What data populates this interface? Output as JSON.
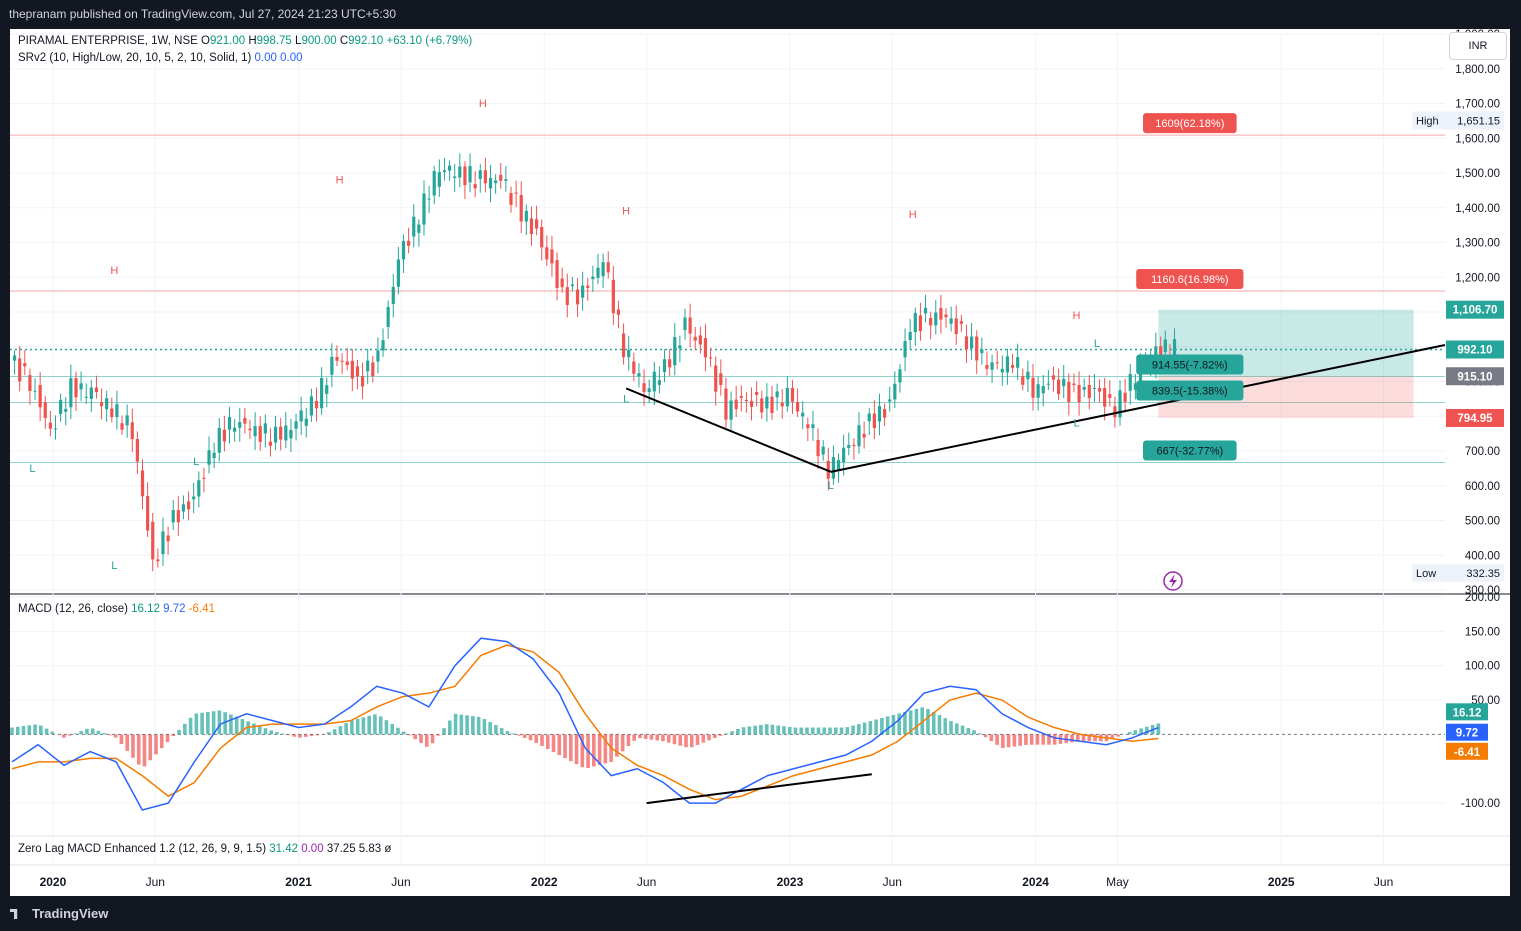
{
  "header": {
    "published": "thepranam published on TradingView.com, Jul 27, 2024 21:23 UTC+5:30"
  },
  "footer": {
    "brand": "TradingView"
  },
  "currency_button": "INR",
  "legend": {
    "symbol": "PIRAMAL ENTERPRISE, 1W, NSE",
    "open_label": "O",
    "open": "921.00",
    "high_label": "H",
    "high": "998.75",
    "low_label": "L",
    "low": "900.00",
    "close_label": "C",
    "close": "992.10",
    "change": "+63.10 (+6.79%)",
    "srv2_label": "SRv2 (10, High/Low, 20, 10, 5, 2, 10, Solid, 1)",
    "srv2_v1": "0.00",
    "srv2_v2": "0.00",
    "macd_label": "MACD (12, 26, close)",
    "macd_hist": "16.12",
    "macd_line": "9.72",
    "macd_signal": "-6.41",
    "zlmacd_label": "Zero Lag MACD Enhanced 1.2 (12, 26, 9, 9, 1.5)",
    "zl_v1": "31.42",
    "zl_v2": "0.00",
    "zl_v3": "37.25",
    "zl_v4": "5.83",
    "zl_v5": "ø"
  },
  "colors": {
    "up": "#26a69a",
    "down": "#ef5350",
    "macd": "#2962ff",
    "signal": "#f57c00",
    "bg": "#ffffff",
    "frame": "#131722"
  },
  "chart_data": [
    {
      "type": "candlestick",
      "timeframe": "weekly",
      "y_axis_ticks": [
        "1,900.00",
        "1,800.00",
        "1,700.00",
        "1,600.00",
        "1,500.00",
        "1,400.00",
        "1,300.00",
        "1,200.00",
        "1,100.00",
        "1,000.00",
        "900.00",
        "800.00",
        "700.00",
        "600.00",
        "500.00",
        "400.00",
        "300.00"
      ],
      "ylim": [
        300,
        1900
      ],
      "x_axis_labels": [
        "2020",
        "Jun",
        "2021",
        "Jun",
        "2022",
        "Jun",
        "2023",
        "Jun",
        "2024",
        "May",
        "2025",
        "Jun"
      ],
      "price_labels": {
        "high": {
          "label": "High",
          "value": "1,651.15"
        },
        "low": {
          "label": "Low",
          "value": "332.35"
        },
        "last": "992.10",
        "level_915": "915.10",
        "target": "1,106.70",
        "stop": "794.95"
      },
      "levels": [
        {
          "label": "1609(62.18%)",
          "value": 1609,
          "color": "#ef5350"
        },
        {
          "label": "1160.6(16.98%)",
          "value": 1160.6,
          "color": "#ef5350"
        },
        {
          "label": "914.55(-7.82%)",
          "value": 914.55,
          "color": "#26a69a"
        },
        {
          "label": "839.5(-15.38%)",
          "value": 839.5,
          "color": "#26a69a"
        },
        {
          "label": "667(-32.77%)",
          "value": 667,
          "color": "#26a69a"
        }
      ],
      "pivot_markers": [
        "H",
        "H",
        "H",
        "H",
        "H",
        "H",
        "L",
        "L",
        "L",
        "L",
        "L",
        "L",
        "L"
      ],
      "trend_lines": [
        {
          "from": {
            "x": "2022-05",
            "y": 880
          },
          "to": {
            "x": "2023-03",
            "y": 640
          }
        },
        {
          "from": {
            "x": "2023-03",
            "y": 640
          },
          "to": {
            "x": "2025-09",
            "y": 1005
          }
        }
      ],
      "series": [
        {
          "name": "PIRAMAL ENTERPRISE",
          "x": [
            "2019-11",
            "2019-12",
            "2020-01",
            "2020-02",
            "2020-03",
            "2020-04",
            "2020-05",
            "2020-06",
            "2020-07",
            "2020-08",
            "2020-09",
            "2020-10",
            "2020-11",
            "2020-12",
            "2021-01",
            "2021-02",
            "2021-03",
            "2021-04",
            "2021-05",
            "2021-06",
            "2021-07",
            "2021-08",
            "2021-09",
            "2021-10",
            "2021-11",
            "2021-12",
            "2022-01",
            "2022-02",
            "2022-03",
            "2022-04",
            "2022-05",
            "2022-06",
            "2022-07",
            "2022-08",
            "2022-09",
            "2022-10",
            "2022-11",
            "2022-12",
            "2023-01",
            "2023-02",
            "2023-03",
            "2023-04",
            "2023-05",
            "2023-06",
            "2023-07",
            "2023-08",
            "2023-09",
            "2023-10",
            "2023-11",
            "2023-12",
            "2024-01",
            "2024-02",
            "2024-03",
            "2024-04",
            "2024-05",
            "2024-06",
            "2024-07"
          ],
          "close": [
            960,
            900,
            760,
            880,
            870,
            820,
            760,
            380,
            500,
            560,
            720,
            790,
            760,
            740,
            780,
            850,
            980,
            900,
            960,
            1250,
            1380,
            1520,
            1500,
            1480,
            1480,
            1390,
            1300,
            1150,
            1150,
            1250,
            1000,
            880,
            940,
            1060,
            980,
            820,
            850,
            830,
            860,
            780,
            650,
            720,
            780,
            830,
            1060,
            1090,
            1080,
            1000,
            940,
            960,
            880,
            900,
            860,
            870,
            820,
            920,
            992
          ]
        }
      ]
    },
    {
      "type": "line",
      "title": "MACD (12, 26, close)",
      "y_axis_ticks": [
        "200.00",
        "150.00",
        "100.00",
        "50.00",
        "-100.00"
      ],
      "ylim": [
        -145,
        200
      ],
      "last_values": {
        "histogram": "16.12",
        "macd": "9.72",
        "signal": "-6.41"
      },
      "series": [
        {
          "name": "MACD",
          "color": "#2962ff",
          "values": [
            -40,
            -15,
            -45,
            -25,
            -40,
            -110,
            -100,
            -40,
            15,
            30,
            20,
            10,
            15,
            40,
            70,
            60,
            40,
            100,
            140,
            135,
            110,
            60,
            -20,
            -60,
            -50,
            -70,
            -100,
            -100,
            -80,
            -60,
            -50,
            -40,
            -30,
            -10,
            20,
            60,
            70,
            65,
            30,
            10,
            -5,
            -10,
            -15,
            -5,
            10
          ]
        },
        {
          "name": "Signal",
          "color": "#f57c00",
          "values": [
            -50,
            -40,
            -40,
            -35,
            -35,
            -60,
            -90,
            -70,
            -20,
            10,
            15,
            15,
            15,
            20,
            40,
            55,
            60,
            70,
            115,
            130,
            120,
            90,
            30,
            -20,
            -45,
            -60,
            -80,
            -95,
            -90,
            -75,
            -60,
            -50,
            -40,
            -30,
            -10,
            20,
            50,
            60,
            50,
            25,
            10,
            0,
            -5,
            -10,
            -6
          ]
        },
        {
          "name": "Histogram",
          "color": "#26a69a",
          "values": [
            10,
            15,
            -5,
            10,
            -5,
            -50,
            -10,
            30,
            35,
            20,
            5,
            -5,
            0,
            20,
            30,
            5,
            -20,
            30,
            25,
            5,
            -10,
            -30,
            -50,
            -40,
            -5,
            -10,
            -20,
            -5,
            10,
            15,
            10,
            10,
            10,
            20,
            30,
            40,
            20,
            5,
            -20,
            -15,
            -15,
            -10,
            -10,
            5,
            16
          ]
        }
      ]
    }
  ]
}
